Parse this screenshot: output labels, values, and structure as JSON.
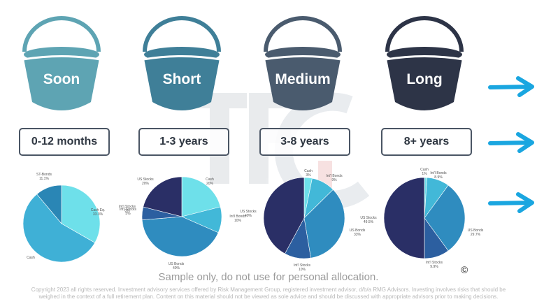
{
  "colors": {
    "bucket_soon": "#5ea4b3",
    "bucket_short": "#3f7f98",
    "bucket_medium": "#4a5b6e",
    "bucket_long": "#2d3447",
    "arrow": "#1aa6e0",
    "box_border": "#4a5564",
    "slice_cash": "#6ee0ea",
    "slice_cash_eq": "#6ee0ea",
    "slice_cash_soon": "#3fb0d6",
    "slice_st_bonds": "#2a86b5",
    "slice_intl_bonds": "#42b8d8",
    "slice_us_bonds": "#2f8cbf",
    "slice_intl_stocks": "#2c5fa0",
    "slice_us_stocks": "#2a2f66"
  },
  "buckets": [
    {
      "name": "Soon",
      "range": "0-12 months"
    },
    {
      "name": "Short",
      "range": "1-3 years"
    },
    {
      "name": "Medium",
      "range": "3-8 years"
    },
    {
      "name": "Long",
      "range": "8+ years"
    }
  ],
  "arrows": [
    {
      "icon": "arrow-right-icon"
    },
    {
      "icon": "arrow-right-icon"
    },
    {
      "icon": "arrow-right-icon"
    }
  ],
  "watermark": {
    "text": "TFG"
  },
  "chart_data": [
    {
      "type": "pie",
      "title": "Soon (0-12 months)",
      "slices": [
        {
          "label": "Cash Eq.",
          "value": 33.3,
          "value_label": "33.3%"
        },
        {
          "label": "Cash",
          "value": 55.6,
          "value_label": ""
        },
        {
          "label": "ST-Bonds",
          "value": 11.1,
          "value_label": "11.1%"
        }
      ],
      "annotations": [
        {
          "label": "Int'l Stocks",
          "value_label": "0%"
        }
      ]
    },
    {
      "type": "pie",
      "title": "Short (1-3 years)",
      "slices": [
        {
          "label": "Cash",
          "value": 20,
          "value_label": "20%"
        },
        {
          "label": "Int'l Bonds",
          "value": 10,
          "value_label": "10%"
        },
        {
          "label": "US Bonds",
          "value": 40,
          "value_label": "40%"
        },
        {
          "label": "Int'l Stocks",
          "value": 5,
          "value_label": "5%"
        },
        {
          "label": "US Stocks",
          "value": 20,
          "value_label": "20%"
        }
      ]
    },
    {
      "type": "pie",
      "title": "Medium (3-8 years)",
      "slices": [
        {
          "label": "Cash",
          "value": 3,
          "value_label": "3%"
        },
        {
          "label": "Int'l Bonds",
          "value": 9,
          "value_label": "9%"
        },
        {
          "label": "US Bonds",
          "value": 33,
          "value_label": "33%"
        },
        {
          "label": "Int'l Stocks",
          "value": 10,
          "value_label": "10%"
        },
        {
          "label": "US Stocks",
          "value": 40,
          "value_label": "40%"
        }
      ]
    },
    {
      "type": "pie",
      "title": "Long (8+ years)",
      "slices": [
        {
          "label": "Cash",
          "value": 1,
          "value_label": "1%"
        },
        {
          "label": "Int'l Bonds",
          "value": 8.9,
          "value_label": "8.9%"
        },
        {
          "label": "US Bonds",
          "value": 29.7,
          "value_label": "29.7%"
        },
        {
          "label": "Int'l Stocks",
          "value": 9.9,
          "value_label": "9.9%"
        },
        {
          "label": "US Stocks",
          "value": 49.5,
          "value_label": "49.5%"
        }
      ]
    }
  ],
  "footer": {
    "disclaimer": "Sample only, do not use for personal allocation.",
    "copyright_symbol": "©",
    "legal_line1": "Copyright 2023 all rights reserved. Investment advisory services offered by Risk Management Group, registered investment advisor, d/b/a RMG Advisors. Investing involves risks that should be",
    "legal_line2": "weighed in the context of a full retirement plan. Content on this material should not be viewed as sole advice and should be discussed with appropriate advisors prior to making decisions."
  }
}
